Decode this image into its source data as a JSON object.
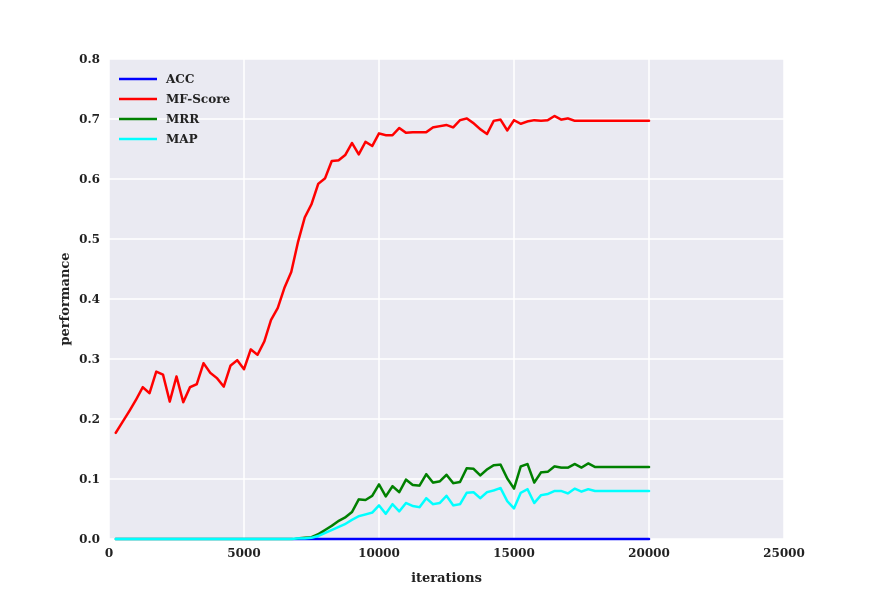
{
  "chart_data": {
    "type": "line",
    "xlabel": "iterations",
    "ylabel": "performance",
    "xlim": [
      0,
      25000
    ],
    "ylim": [
      0.0,
      0.8
    ],
    "xticks": [
      0,
      5000,
      10000,
      15000,
      20000,
      25000
    ],
    "yticks": [
      0.0,
      0.1,
      0.2,
      0.3,
      0.4,
      0.5,
      0.6,
      0.7,
      0.8
    ],
    "xtick_labels": [
      "0",
      "5000",
      "10000",
      "15000",
      "20000",
      "25000"
    ],
    "ytick_labels": [
      "0.0",
      "0.1",
      "0.2",
      "0.3",
      "0.4",
      "0.5",
      "0.6",
      "0.7",
      "0.8"
    ],
    "grid": true,
    "legend_position": "top-left",
    "x": [
      250,
      500,
      750,
      1000,
      1250,
      1500,
      1750,
      2000,
      2250,
      2500,
      2750,
      3000,
      3250,
      3500,
      3750,
      4000,
      4250,
      4500,
      4750,
      5000,
      5250,
      5500,
      5750,
      6000,
      6250,
      6500,
      6750,
      7000,
      7250,
      7500,
      7750,
      8000,
      8250,
      8500,
      8750,
      9000,
      9250,
      9500,
      9750,
      10000,
      10250,
      10500,
      10750,
      11000,
      11250,
      11500,
      11750,
      12000,
      12250,
      12500,
      12750,
      13000,
      13250,
      13500,
      13750,
      14000,
      14250,
      14500,
      14750,
      15000,
      15250,
      15500,
      15750,
      16000,
      16250,
      16500,
      16750,
      17000,
      17250,
      17500,
      17750,
      18000,
      18250,
      18500,
      18750,
      19000,
      19250,
      19500,
      19750,
      20000
    ],
    "series": [
      {
        "name": "ACC",
        "color": "#0000ff",
        "values": [
          0,
          0,
          0,
          0,
          0,
          0,
          0,
          0,
          0,
          0,
          0,
          0,
          0,
          0,
          0,
          0,
          0,
          0,
          0,
          0,
          0,
          0,
          0,
          0,
          0,
          0,
          0,
          0,
          0,
          0,
          0,
          0,
          0,
          0,
          0,
          0,
          0,
          0,
          0,
          0,
          0,
          0,
          0,
          0,
          0,
          0,
          0,
          0,
          0,
          0,
          0,
          0,
          0,
          0,
          0,
          0,
          0,
          0,
          0,
          0,
          0,
          0,
          0,
          0,
          0,
          0,
          0,
          0,
          0,
          0,
          0,
          0,
          0,
          0,
          0,
          0,
          0,
          0,
          0,
          0
        ]
      },
      {
        "name": "MF-Score",
        "color": "#ff0000",
        "values": [
          0.177,
          0.195,
          0.213,
          0.232,
          0.253,
          0.243,
          0.279,
          0.274,
          0.229,
          0.271,
          0.228,
          0.253,
          0.258,
          0.293,
          0.277,
          0.268,
          0.254,
          0.289,
          0.298,
          0.283,
          0.316,
          0.307,
          0.329,
          0.365,
          0.385,
          0.419,
          0.445,
          0.495,
          0.536,
          0.558,
          0.592,
          0.601,
          0.63,
          0.631,
          0.64,
          0.66,
          0.641,
          0.662,
          0.655,
          0.676,
          0.673,
          0.673,
          0.685,
          0.677,
          0.678,
          0.678,
          0.678,
          0.686,
          0.688,
          0.69,
          0.686,
          0.698,
          0.701,
          0.693,
          0.683,
          0.675,
          0.697,
          0.699,
          0.681,
          0.698,
          0.692,
          0.696,
          0.698,
          0.697,
          0.698,
          0.705,
          0.699,
          0.701,
          0.697,
          0.697,
          0.697,
          0.697,
          0.697,
          0.697,
          0.697,
          0.697,
          0.697,
          0.697,
          0.697,
          0.697
        ]
      },
      {
        "name": "MRR",
        "color": "#008000",
        "values": [
          0,
          0,
          0,
          0,
          0,
          0,
          0,
          0,
          0,
          0,
          0,
          0,
          0,
          0,
          0,
          0,
          0,
          0,
          0,
          0,
          0,
          0,
          0,
          0,
          0,
          0,
          0,
          0.001,
          0.002,
          0.003,
          0.008,
          0.015,
          0.022,
          0.03,
          0.036,
          0.045,
          0.066,
          0.065,
          0.072,
          0.091,
          0.071,
          0.088,
          0.078,
          0.099,
          0.09,
          0.089,
          0.108,
          0.094,
          0.096,
          0.107,
          0.093,
          0.095,
          0.118,
          0.117,
          0.106,
          0.116,
          0.123,
          0.124,
          0.101,
          0.084,
          0.121,
          0.125,
          0.094,
          0.111,
          0.112,
          0.121,
          0.119,
          0.119,
          0.125,
          0.119,
          0.126,
          0.12,
          0.12,
          0.12,
          0.12,
          0.12,
          0.12,
          0.12,
          0.12,
          0.12
        ]
      },
      {
        "name": "MAP",
        "color": "#00ffff",
        "values": [
          0,
          0,
          0,
          0,
          0,
          0,
          0,
          0,
          0,
          0,
          0,
          0,
          0,
          0,
          0,
          0,
          0,
          0,
          0,
          0,
          0,
          0,
          0,
          0,
          0,
          0,
          0,
          0.001,
          0.001,
          0.002,
          0.005,
          0.01,
          0.015,
          0.02,
          0.025,
          0.032,
          0.038,
          0.041,
          0.044,
          0.056,
          0.042,
          0.058,
          0.046,
          0.06,
          0.055,
          0.053,
          0.068,
          0.058,
          0.06,
          0.072,
          0.056,
          0.058,
          0.077,
          0.078,
          0.068,
          0.078,
          0.081,
          0.085,
          0.063,
          0.051,
          0.077,
          0.083,
          0.06,
          0.073,
          0.075,
          0.08,
          0.08,
          0.076,
          0.084,
          0.079,
          0.083,
          0.08,
          0.08,
          0.08,
          0.08,
          0.08,
          0.08,
          0.08,
          0.08,
          0.08
        ]
      }
    ]
  }
}
